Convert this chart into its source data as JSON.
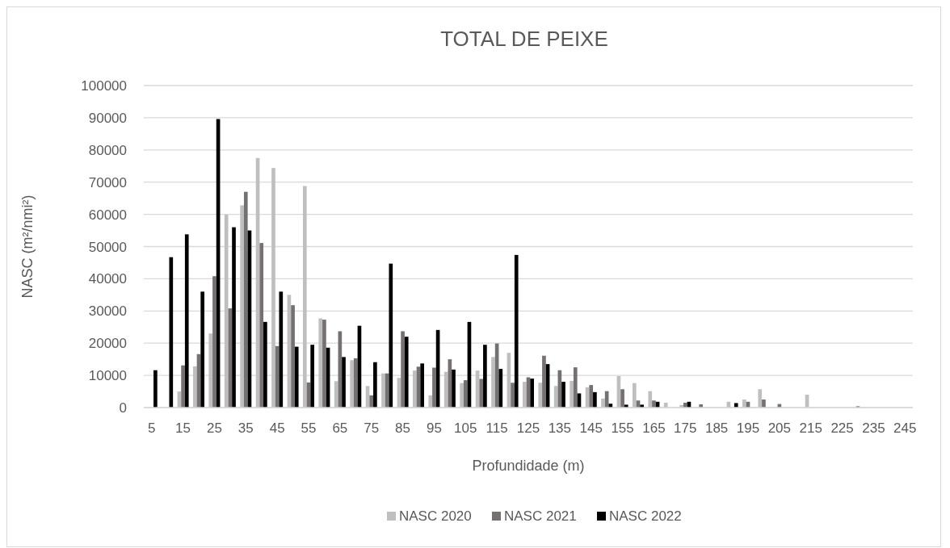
{
  "chart_data": {
    "type": "bar",
    "title": "TOTAL DE PEIXE",
    "xlabel": "Profundidade (m)",
    "ylabel": "NASC (m²/nmi²)",
    "categories": [
      "5",
      null,
      "15",
      null,
      "25",
      null,
      "35",
      null,
      "45",
      null,
      "55",
      null,
      "65",
      null,
      "75",
      null,
      "85",
      null,
      "95",
      null,
      "105",
      null,
      "115",
      null,
      "125",
      null,
      "135",
      null,
      "145",
      null,
      "155",
      null,
      "165",
      null,
      "175",
      null,
      "185",
      null,
      "195",
      null,
      "205",
      null,
      "215",
      null,
      "225",
      null,
      "235",
      null,
      "245"
    ],
    "series": [
      {
        "name": "NASC 2020",
        "color": "#bfbfbf",
        "values": [
          0,
          0,
          5000,
          12800,
          23000,
          59900,
          62800,
          77500,
          74400,
          35000,
          68800,
          27700,
          8200,
          14700,
          6700,
          10600,
          9200,
          11500,
          3800,
          11100,
          7600,
          11500,
          15700,
          17000,
          8000,
          7700,
          6700,
          8300,
          6300,
          2800,
          9800,
          7600,
          5100,
          1500,
          800,
          0,
          0,
          1800,
          2500,
          5700,
          0,
          0,
          4000,
          0,
          0,
          0,
          0,
          0,
          0
        ]
      },
      {
        "name": "NASC 2021",
        "color": "#767171",
        "values": [
          0,
          0,
          13100,
          16600,
          40800,
          30800,
          67000,
          51100,
          19100,
          31800,
          7800,
          27300,
          23700,
          15300,
          3800,
          10600,
          23700,
          12700,
          12400,
          15000,
          8500,
          8900,
          19900,
          7700,
          9400,
          16100,
          11600,
          12500,
          7000,
          5100,
          5700,
          2200,
          2200,
          0,
          1500,
          1000,
          0,
          0,
          1800,
          2500,
          1100,
          0,
          0,
          0,
          0,
          400,
          0,
          0,
          0
        ]
      },
      {
        "name": "NASC 2022",
        "color": "#000000",
        "values": [
          11600,
          46700,
          53800,
          36000,
          89600,
          56000,
          55000,
          26600,
          36000,
          18900,
          19500,
          18600,
          15700,
          25400,
          14100,
          44700,
          22000,
          13700,
          24100,
          11800,
          26600,
          19500,
          12000,
          47400,
          9000,
          13500,
          8000,
          4400,
          4800,
          1200,
          900,
          900,
          1800,
          0,
          1800,
          0,
          0,
          1400,
          0,
          0,
          0,
          0,
          0,
          0,
          0,
          0,
          0,
          0,
          0
        ]
      }
    ],
    "ylim": [
      0,
      100000
    ],
    "yticks": [
      0,
      10000,
      20000,
      30000,
      40000,
      50000,
      60000,
      70000,
      80000,
      90000,
      100000
    ],
    "grid": "y",
    "legend": "bottom"
  }
}
